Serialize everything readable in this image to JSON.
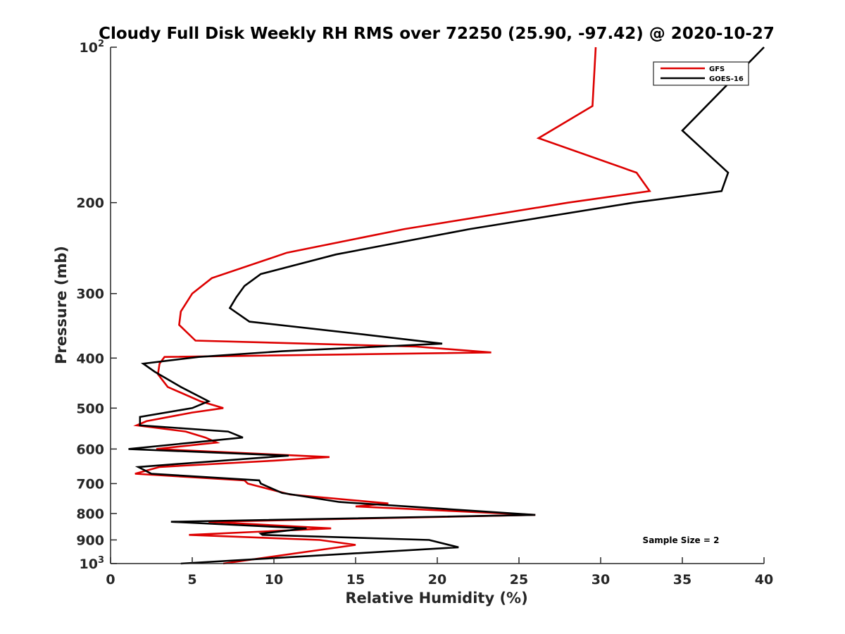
{
  "chart_data": {
    "type": "line",
    "title": "Cloudy Full Disk Weekly RH RMS over 72250 (25.90, -97.42) @ 2020-10-27",
    "xlabel": "Relative Humidity (%)",
    "ylabel": "Pressure (mb)",
    "xlim": [
      0,
      40
    ],
    "ylim": [
      100,
      1000
    ],
    "yscale": "log",
    "yreversed": true,
    "grid": false,
    "legend_position": "top-right",
    "xticks": [
      0,
      5,
      10,
      15,
      20,
      25,
      30,
      35,
      40
    ],
    "yticks": [
      {
        "value": 100,
        "base": "10",
        "exp": "2"
      },
      {
        "value": 200,
        "label": "200"
      },
      {
        "value": 300,
        "label": "300"
      },
      {
        "value": 400,
        "label": "400"
      },
      {
        "value": 500,
        "label": "500"
      },
      {
        "value": 600,
        "label": "600"
      },
      {
        "value": 700,
        "label": "700"
      },
      {
        "value": 800,
        "label": "800"
      },
      {
        "value": 900,
        "label": "900"
      },
      {
        "value": 1000,
        "base": "10",
        "exp": "3"
      }
    ],
    "annotation": "Sample Size = 2",
    "series": [
      {
        "name": "GFS",
        "color": "#dd0000",
        "points": [
          [
            29.7,
            100
          ],
          [
            29.5,
            130
          ],
          [
            26.2,
            150
          ],
          [
            32.2,
            175
          ],
          [
            33.0,
            190
          ],
          [
            28.0,
            200
          ],
          [
            18.0,
            225
          ],
          [
            10.8,
            250
          ],
          [
            6.2,
            280
          ],
          [
            5.0,
            300
          ],
          [
            4.3,
            325
          ],
          [
            4.2,
            345
          ],
          [
            5.2,
            370
          ],
          [
            18.7,
            380
          ],
          [
            23.3,
            390
          ],
          [
            3.3,
            398
          ],
          [
            3.0,
            410
          ],
          [
            2.9,
            430
          ],
          [
            3.5,
            455
          ],
          [
            5.5,
            485
          ],
          [
            6.9,
            500
          ],
          [
            5.0,
            510
          ],
          [
            2.2,
            530
          ],
          [
            1.6,
            540
          ],
          [
            4.6,
            555
          ],
          [
            5.8,
            570
          ],
          [
            6.5,
            583
          ],
          [
            2.8,
            600
          ],
          [
            13.4,
            622
          ],
          [
            10.0,
            632
          ],
          [
            3.0,
            650
          ],
          [
            1.5,
            670
          ],
          [
            8.2,
            690
          ],
          [
            8.4,
            700
          ],
          [
            11.0,
            735
          ],
          [
            17.0,
            765
          ],
          [
            15.0,
            775
          ],
          [
            26.0,
            805
          ],
          [
            6.0,
            830
          ],
          [
            13.5,
            855
          ],
          [
            4.8,
            880
          ],
          [
            12.8,
            900
          ],
          [
            15.0,
            920
          ],
          [
            6.9,
            1000
          ]
        ]
      },
      {
        "name": "GOES-16",
        "color": "#000000",
        "points": [
          [
            40.0,
            100
          ],
          [
            35.0,
            145
          ],
          [
            37.8,
            175
          ],
          [
            37.4,
            190
          ],
          [
            32.0,
            200
          ],
          [
            22.0,
            225
          ],
          [
            13.8,
            252
          ],
          [
            9.2,
            275
          ],
          [
            8.2,
            290
          ],
          [
            7.7,
            305
          ],
          [
            7.3,
            320
          ],
          [
            8.5,
            340
          ],
          [
            15.5,
            360
          ],
          [
            20.3,
            375
          ],
          [
            10.5,
            388
          ],
          [
            5.4,
            398
          ],
          [
            2.0,
            410
          ],
          [
            2.7,
            425
          ],
          [
            4.3,
            455
          ],
          [
            6.0,
            485
          ],
          [
            5.0,
            500
          ],
          [
            1.8,
            520
          ],
          [
            1.8,
            540
          ],
          [
            7.2,
            555
          ],
          [
            8.1,
            570
          ],
          [
            1.1,
            600
          ],
          [
            10.9,
            618
          ],
          [
            1.7,
            650
          ],
          [
            2.5,
            670
          ],
          [
            9.1,
            690
          ],
          [
            9.2,
            700
          ],
          [
            10.5,
            730
          ],
          [
            14.0,
            760
          ],
          [
            26.0,
            805
          ],
          [
            3.7,
            830
          ],
          [
            12.0,
            855
          ],
          [
            9.2,
            875
          ],
          [
            9.3,
            880
          ],
          [
            19.5,
            900
          ],
          [
            21.3,
            930
          ],
          [
            4.3,
            1000
          ]
        ]
      }
    ]
  }
}
